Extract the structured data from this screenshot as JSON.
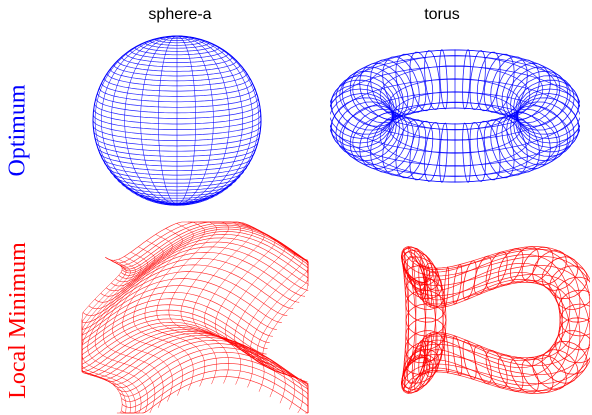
{
  "columns": [
    "sphere-a",
    "torus"
  ],
  "rows": [
    {
      "label": "Optimum",
      "color": "#0000ff"
    },
    {
      "label": "Local Minimum",
      "color": "#ff0000"
    }
  ],
  "panels": [
    {
      "row": 0,
      "col": 0,
      "shape": "sphere",
      "state": "optimum"
    },
    {
      "row": 0,
      "col": 1,
      "shape": "torus",
      "state": "optimum"
    },
    {
      "row": 1,
      "col": 0,
      "shape": "sphere",
      "state": "local-minimum"
    },
    {
      "row": 1,
      "col": 1,
      "shape": "torus",
      "state": "local-minimum"
    }
  ]
}
